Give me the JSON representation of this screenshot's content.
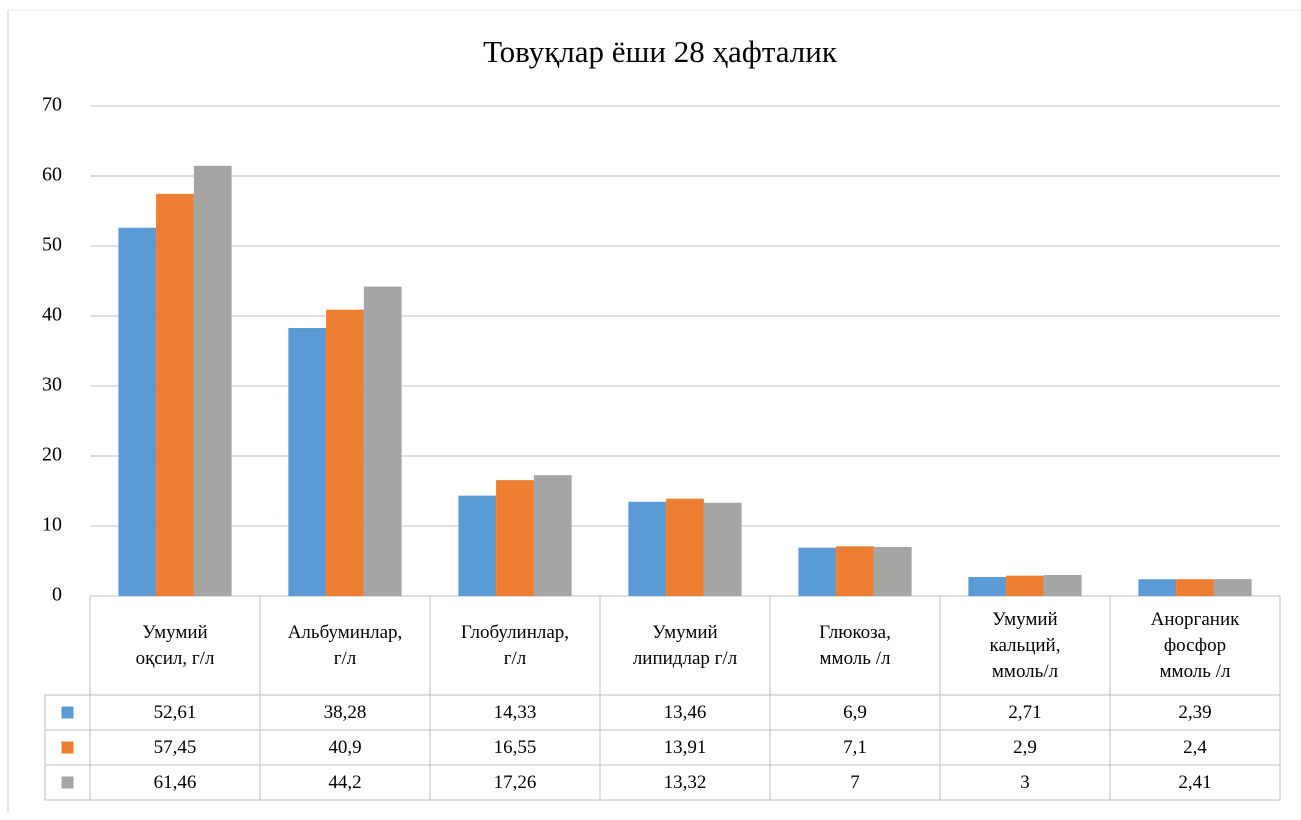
{
  "chart_data": {
    "type": "bar",
    "title": "Товуқлар ёши 28 ҳафталик",
    "categories": [
      "Умумий\nоқсил, г/л",
      "Альбуминлар,\nг/л",
      "Глобулинлар,\nг/л",
      "Умумий\nлипидлар г/л",
      "Глюкоза,\nммоль /л",
      "Умумий\nкальций,\nммоль/л",
      "Анорганик\nфосфор\nммоль /л"
    ],
    "series": [
      {
        "color": "#5b9bd5",
        "values": [
          52.61,
          38.28,
          14.33,
          13.46,
          6.9,
          2.71,
          2.39
        ],
        "value_labels": [
          "52,61",
          "38,28",
          "14,33",
          "13,46",
          "6,9",
          "2,71",
          "2,39"
        ]
      },
      {
        "color": "#ed7d31",
        "values": [
          57.45,
          40.9,
          16.55,
          13.91,
          7.1,
          2.9,
          2.4
        ],
        "value_labels": [
          "57,45",
          "40,9",
          "16,55",
          "13,91",
          "7,1",
          "2,9",
          "2,4"
        ]
      },
      {
        "color": "#a5a5a5",
        "values": [
          61.46,
          44.2,
          17.26,
          13.32,
          7,
          3,
          2.41
        ],
        "value_labels": [
          "61,46",
          "44,2",
          "17,26",
          "13,32",
          "7",
          "3",
          "2,41"
        ]
      }
    ],
    "ylim": [
      0,
      70
    ],
    "yticks": [
      0,
      10,
      20,
      30,
      40,
      50,
      60,
      70
    ],
    "grid": true
  }
}
